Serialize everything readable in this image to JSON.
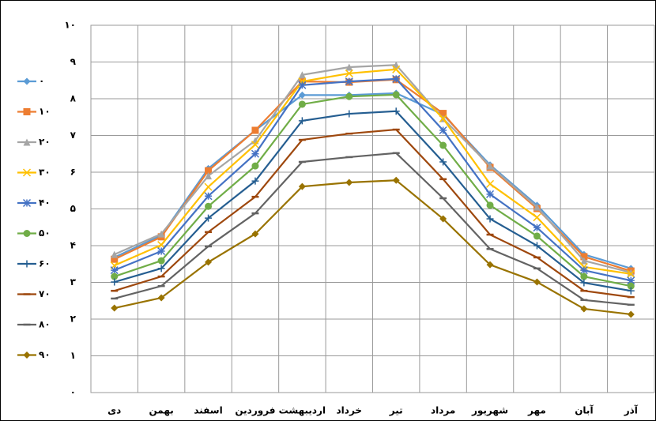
{
  "chart_data": {
    "type": "line",
    "categories": [
      "دی",
      "بهمن",
      "اسفند",
      "فروردین",
      "اردیبهشت",
      "خرداد",
      "تیر",
      "مرداد",
      "شهریور",
      "مهر",
      "آبان",
      "آذر"
    ],
    "ylim": [
      0,
      10
    ],
    "yticks": [
      {
        "value": 0,
        "label": "۰"
      },
      {
        "value": 1,
        "label": "۱"
      },
      {
        "value": 2,
        "label": "۲"
      },
      {
        "value": 3,
        "label": "۳"
      },
      {
        "value": 4,
        "label": "۴"
      },
      {
        "value": 5,
        "label": "۵"
      },
      {
        "value": 6,
        "label": "۶"
      },
      {
        "value": 7,
        "label": "۷"
      },
      {
        "value": 8,
        "label": "۸"
      },
      {
        "value": 9,
        "label": "۹"
      },
      {
        "value": 10,
        "label": "۱۰"
      }
    ],
    "grid": true,
    "legend": "left",
    "series": [
      {
        "name": "۰",
        "color": "#5b9bd5",
        "marker": "diamond",
        "values": [
          3.68,
          4.28,
          6.1,
          7.14,
          8.1,
          8.1,
          8.15,
          7.57,
          6.2,
          5.1,
          3.76,
          3.38
        ]
      },
      {
        "name": "۱۰",
        "color": "#ed7d31",
        "marker": "square",
        "values": [
          3.63,
          4.24,
          6.04,
          7.14,
          8.47,
          8.45,
          8.52,
          7.6,
          6.13,
          5.01,
          3.7,
          3.31
        ]
      },
      {
        "name": "۲۰",
        "color": "#a5a5a5",
        "marker": "triangle",
        "values": [
          3.76,
          4.32,
          5.9,
          6.86,
          8.65,
          8.86,
          8.92,
          7.46,
          6.17,
          5.05,
          3.59,
          3.27
        ]
      },
      {
        "name": "۳۰",
        "color": "#ffc000",
        "marker": "x",
        "values": [
          3.46,
          4.02,
          5.6,
          6.75,
          8.47,
          8.69,
          8.8,
          7.46,
          5.68,
          4.77,
          3.42,
          3.23
        ]
      },
      {
        "name": "۴۰",
        "color": "#4472c4",
        "marker": "star",
        "values": [
          3.33,
          3.85,
          5.35,
          6.5,
          8.37,
          8.47,
          8.54,
          7.14,
          5.4,
          4.49,
          3.33,
          3.05
        ]
      },
      {
        "name": "۵۰",
        "color": "#70ad47",
        "marker": "circle",
        "values": [
          3.16,
          3.59,
          5.07,
          6.17,
          7.85,
          8.06,
          8.11,
          6.73,
          5.1,
          4.26,
          3.16,
          2.9
        ]
      },
      {
        "name": "۶۰",
        "color": "#255e91",
        "marker": "plus",
        "values": [
          3.01,
          3.38,
          4.75,
          5.76,
          7.4,
          7.59,
          7.66,
          6.28,
          4.73,
          4.0,
          2.99,
          2.77
        ]
      },
      {
        "name": "۷۰",
        "color": "#9e480e",
        "marker": "dash",
        "values": [
          2.77,
          3.16,
          4.37,
          5.33,
          6.88,
          7.05,
          7.16,
          5.81,
          4.3,
          3.68,
          2.77,
          2.6
        ]
      },
      {
        "name": "۸۰",
        "color": "#636363",
        "marker": "dash",
        "values": [
          2.56,
          2.9,
          3.98,
          4.88,
          6.28,
          6.41,
          6.52,
          5.29,
          3.91,
          3.38,
          2.52,
          2.39
        ]
      },
      {
        "name": "۹۰",
        "color": "#997300",
        "marker": "diamond",
        "values": [
          2.3,
          2.58,
          3.55,
          4.32,
          5.61,
          5.72,
          5.78,
          4.73,
          3.48,
          3.01,
          2.28,
          2.13
        ]
      }
    ]
  }
}
